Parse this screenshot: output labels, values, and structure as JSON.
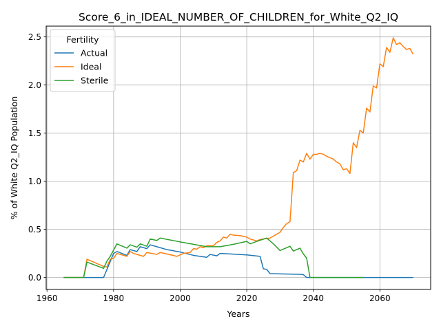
{
  "chart_data": {
    "type": "line",
    "title": "Score_6_in_IDEAL_NUMBER_OF_CHILDREN_for_White_Q2_IQ",
    "xlabel": "Years",
    "ylabel": "% of White Q2_IQ Population",
    "xlim": [
      1959.75,
      2075.25
    ],
    "ylim": [
      -0.124,
      2.612
    ],
    "xticks": [
      1960,
      1980,
      2000,
      2020,
      2040,
      2060
    ],
    "yticks": [
      0.0,
      0.5,
      1.0,
      1.5,
      2.0,
      2.5
    ],
    "xtick_labels": [
      "1960",
      "1980",
      "2000",
      "2020",
      "2040",
      "2060"
    ],
    "ytick_labels": [
      "0.0",
      "0.5",
      "1.0",
      "1.5",
      "2.0",
      "2.5"
    ],
    "grid": true,
    "legend": {
      "title": "Fertility",
      "position": "top-left"
    },
    "series": [
      {
        "name": "Actual",
        "color": "#1f77b4",
        "x": [
          1965,
          1971,
          1977,
          1980,
          1981,
          1984,
          1985,
          1987,
          1988,
          1990,
          1991,
          1993,
          1996,
          2000,
          2004,
          2008,
          2009,
          2011,
          2012,
          2015,
          2020,
          2024,
          2025,
          2026,
          2027,
          2030,
          2036,
          2037,
          2038,
          2040,
          2050,
          2060,
          2070
        ],
        "y": [
          0.0,
          0.0,
          0.0,
          0.25,
          0.27,
          0.23,
          0.29,
          0.27,
          0.32,
          0.3,
          0.34,
          0.32,
          0.29,
          0.265,
          0.23,
          0.21,
          0.24,
          0.225,
          0.25,
          0.245,
          0.235,
          0.22,
          0.09,
          0.085,
          0.04,
          0.038,
          0.033,
          0.03,
          0.0,
          0.0,
          0.0,
          0.0,
          0.0
        ]
      },
      {
        "name": "Ideal",
        "color": "#ff7f0e",
        "x": [
          1965,
          1971,
          1972,
          1974,
          1977,
          1978,
          1979,
          1980,
          1981,
          1982,
          1984,
          1985,
          1986,
          1989,
          1990,
          1993,
          1994,
          1996,
          1999,
          2001,
          2003,
          2004,
          2005,
          2006,
          2007,
          2008,
          2010,
          2011,
          2012,
          2013,
          2014,
          2015,
          2016,
          2018,
          2020,
          2021,
          2023,
          2024,
          2025,
          2027,
          2028,
          2029,
          2030,
          2031,
          2032,
          2033,
          2034,
          2035,
          2036,
          2037,
          2038,
          2039,
          2040,
          2041,
          2042,
          2043,
          2044,
          2046,
          2047,
          2048,
          2049,
          2050,
          2051,
          2052,
          2053,
          2054,
          2055,
          2056,
          2057,
          2058,
          2059,
          2060,
          2061,
          2062,
          2063,
          2064,
          2065,
          2066,
          2067,
          2068,
          2069,
          2070
        ],
        "y": [
          0.0,
          0.0,
          0.19,
          0.16,
          0.115,
          0.11,
          0.19,
          0.2,
          0.25,
          0.24,
          0.22,
          0.27,
          0.25,
          0.22,
          0.26,
          0.24,
          0.26,
          0.245,
          0.22,
          0.25,
          0.26,
          0.3,
          0.295,
          0.32,
          0.31,
          0.33,
          0.33,
          0.365,
          0.38,
          0.42,
          0.41,
          0.45,
          0.44,
          0.435,
          0.42,
          0.4,
          0.38,
          0.395,
          0.4,
          0.41,
          0.43,
          0.45,
          0.47,
          0.52,
          0.56,
          0.58,
          1.09,
          1.11,
          1.22,
          1.2,
          1.29,
          1.23,
          1.28,
          1.28,
          1.29,
          1.28,
          1.26,
          1.23,
          1.2,
          1.18,
          1.12,
          1.13,
          1.08,
          1.4,
          1.35,
          1.53,
          1.5,
          1.76,
          1.72,
          1.99,
          1.97,
          2.22,
          2.19,
          2.39,
          2.34,
          2.49,
          2.42,
          2.44,
          2.4,
          2.37,
          2.38,
          2.32
        ]
      },
      {
        "name": "Sterile",
        "color": "#2ca02c",
        "x": [
          1965,
          1971,
          1972,
          1977,
          1978,
          1979,
          1981,
          1984,
          1985,
          1987,
          1988,
          1990,
          1991,
          1993,
          1994,
          2000,
          2008,
          2012,
          2016,
          2020,
          2021,
          2023,
          2026,
          2028,
          2030,
          2033,
          2034,
          2036,
          2037,
          2038,
          2039,
          2040,
          2050,
          2055
        ],
        "y": [
          0.0,
          0.0,
          0.16,
          0.095,
          0.17,
          0.22,
          0.35,
          0.305,
          0.34,
          0.315,
          0.35,
          0.325,
          0.4,
          0.385,
          0.41,
          0.37,
          0.32,
          0.32,
          0.345,
          0.375,
          0.35,
          0.375,
          0.41,
          0.35,
          0.28,
          0.325,
          0.275,
          0.305,
          0.245,
          0.2,
          0.0,
          0.0,
          0.0,
          0.0
        ]
      }
    ]
  }
}
